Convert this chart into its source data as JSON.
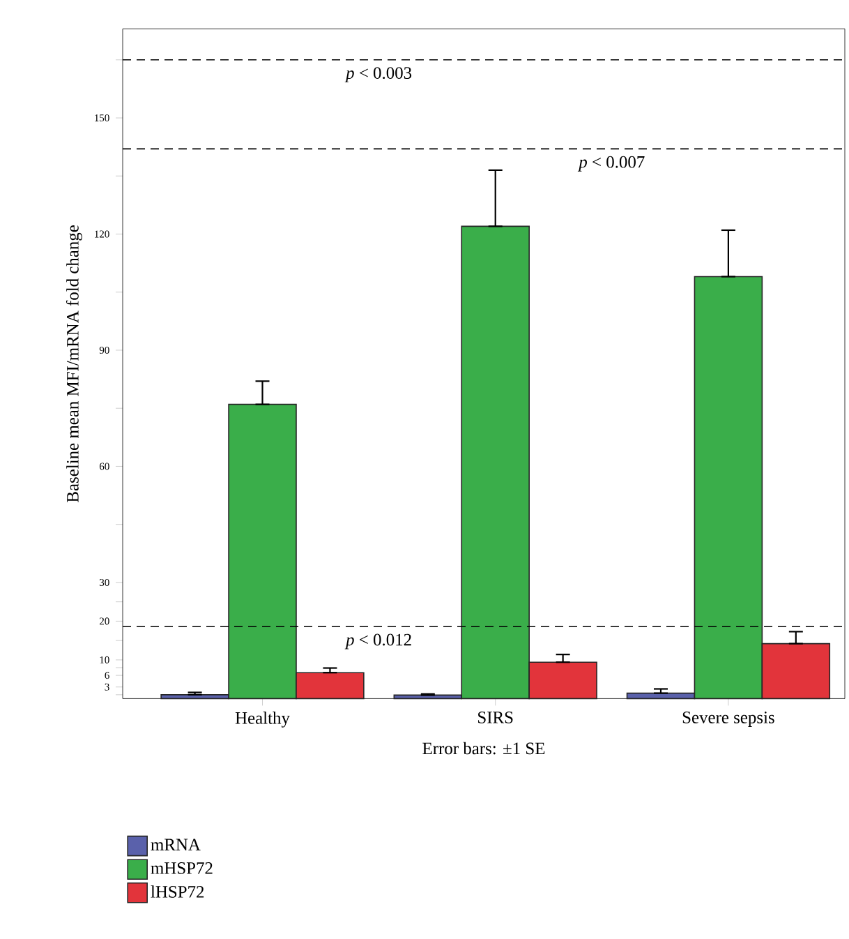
{
  "chart_data": {
    "type": "bar",
    "categories": [
      "Healthy",
      "SIRS",
      "Severe sepsis"
    ],
    "series": [
      {
        "name": "mRNA",
        "color": "#5a61ab",
        "values": [
          1.0,
          0.9,
          1.4
        ],
        "errors": [
          [
            1.0,
            1.6
          ],
          [
            0.9,
            1.2
          ],
          [
            1.4,
            2.5
          ]
        ]
      },
      {
        "name": "mHSP72",
        "color": "#3aae4a",
        "values": [
          76,
          122,
          109
        ],
        "errors": [
          [
            76,
            82
          ],
          [
            122,
            136.5
          ],
          [
            109,
            121
          ]
        ]
      },
      {
        "name": "lHSP72",
        "color": "#e2343b",
        "values": [
          6.7,
          9.4,
          14.2
        ],
        "errors": [
          [
            6.7,
            7.9
          ],
          [
            9.4,
            11.4
          ],
          [
            14.2,
            17.3
          ]
        ]
      }
    ],
    "ylabel": "Baseline mean MFI/mRNA fold change",
    "xlabel": "Error bars: ±1 SE",
    "ylim": [
      0,
      173
    ],
    "yticks": [
      {
        "value": 1,
        "label": null
      },
      3,
      6,
      {
        "value": 8,
        "label": null
      },
      10,
      {
        "value": 15,
        "label": null
      },
      20,
      {
        "value": 25,
        "label": null
      },
      30,
      {
        "value": 45,
        "label": null
      },
      60,
      {
        "value": 75,
        "label": null
      },
      90,
      {
        "value": 105,
        "label": null
      },
      120,
      {
        "value": 135,
        "label": null
      },
      150,
      {
        "value": 165,
        "label": null
      }
    ],
    "ref_lines": [
      {
        "axis": "y",
        "value": 165,
        "label": "*p* < 0.003",
        "line_style": "dashed"
      },
      {
        "axis": "y",
        "value": 142,
        "label": "*p* < 0.007",
        "line_style": "dashed"
      },
      {
        "axis": "y",
        "value": 18.6,
        "label": "*p* < 0.012",
        "line_style": "dashed"
      }
    ],
    "legend": "bottom",
    "grid": false
  }
}
